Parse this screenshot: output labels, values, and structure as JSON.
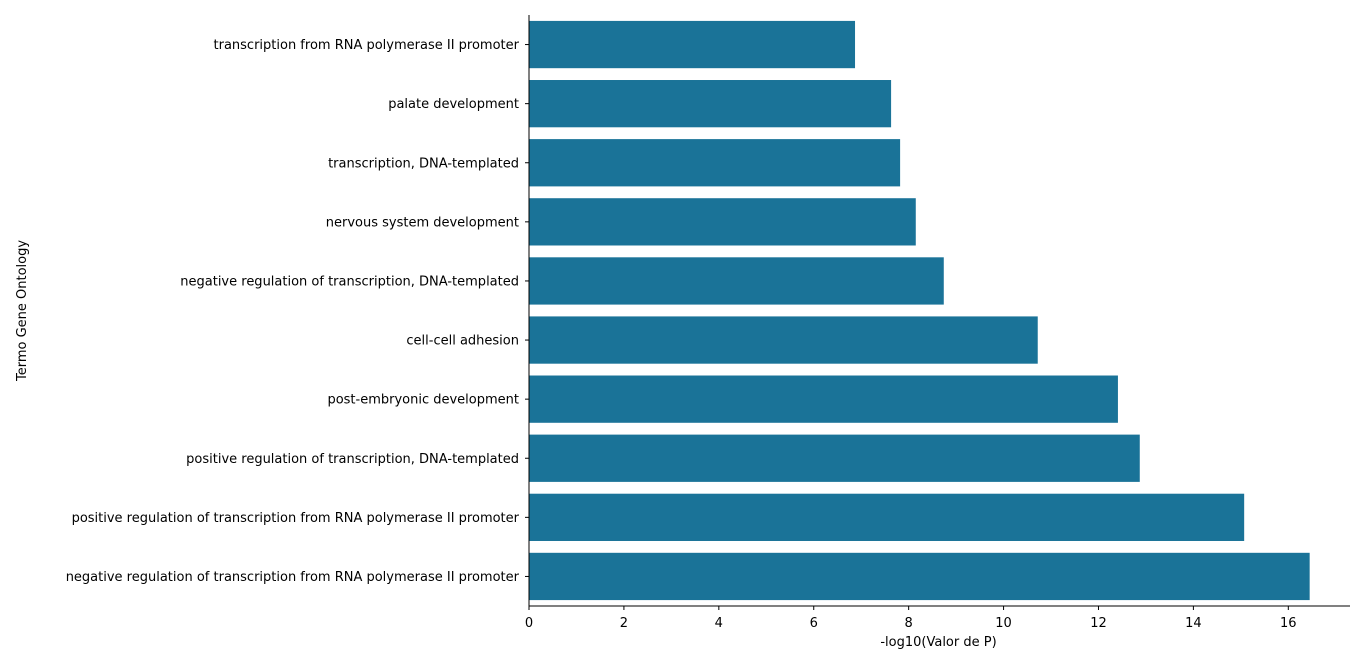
{
  "chart_data": {
    "type": "bar",
    "orientation": "horizontal",
    "categories": [
      "transcription from RNA polymerase II promoter",
      "palate development",
      "transcription, DNA-templated",
      "nervous system development",
      "negative regulation of transcription, DNA-templated",
      "cell-cell adhesion",
      "post-embryonic development",
      "positive regulation of transcription, DNA-templated",
      "positive regulation of transcription from RNA polymerase II promoter",
      "negative regulation of transcription from RNA polymerase II promoter"
    ],
    "values": [
      6.87,
      7.63,
      7.82,
      8.15,
      8.74,
      10.72,
      12.41,
      12.87,
      15.07,
      16.45
    ],
    "xlabel": "-log10(Valor de P)",
    "ylabel": "Termo Gene Ontology",
    "xlim": [
      0,
      17.3
    ],
    "xticks": [
      0,
      2,
      4,
      6,
      8,
      10,
      12,
      14,
      16
    ],
    "bar_color": "#1a7398",
    "grid": false,
    "legend": "none"
  }
}
